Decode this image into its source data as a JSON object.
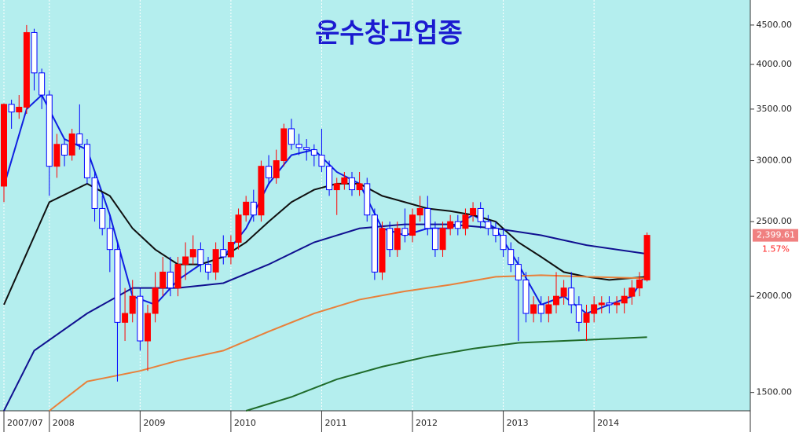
{
  "chart_data": {
    "type": "candlestick",
    "title": "운수창고업종",
    "log_scale": true,
    "ylim": [
      1420,
      4850
    ],
    "yticks": [
      {
        "value": 1500,
        "label": "1500.00"
      },
      {
        "value": 2000,
        "label": "2000.00"
      },
      {
        "value": 2500,
        "label": "2500.00"
      },
      {
        "value": 3000,
        "label": "3000.00"
      },
      {
        "value": 3500,
        "label": "3500.00"
      },
      {
        "value": 4000,
        "label": "4000.00"
      },
      {
        "value": 4500,
        "label": "4500.00"
      }
    ],
    "xticks": [
      {
        "value": "2007-07",
        "label": "2007/07"
      },
      {
        "value": "2008-01",
        "label": "2008"
      },
      {
        "value": "2009-01",
        "label": "2009"
      },
      {
        "value": "2010-01",
        "label": "2010"
      },
      {
        "value": "2011-01",
        "label": "2011"
      },
      {
        "value": "2012-01",
        "label": "2012"
      },
      {
        "value": "2013-01",
        "label": "2013"
      },
      {
        "value": "2014-01",
        "label": "2014"
      }
    ],
    "grid": true,
    "up_color": "#ff0000",
    "down_color": "#0000ff",
    "candles": {
      "x": [
        "2007-07",
        "2007-08",
        "2007-09",
        "2007-10",
        "2007-11",
        "2007-12",
        "2008-01",
        "2008-02",
        "2008-03",
        "2008-04",
        "2008-05",
        "2008-06",
        "2008-07",
        "2008-08",
        "2008-09",
        "2008-10",
        "2008-11",
        "2008-12",
        "2009-01",
        "2009-02",
        "2009-03",
        "2009-04",
        "2009-05",
        "2009-06",
        "2009-07",
        "2009-08",
        "2009-09",
        "2009-10",
        "2009-11",
        "2009-12",
        "2010-01",
        "2010-02",
        "2010-03",
        "2010-04",
        "2010-05",
        "2010-06",
        "2010-07",
        "2010-08",
        "2010-09",
        "2010-10",
        "2010-11",
        "2010-12",
        "2011-01",
        "2011-02",
        "2011-03",
        "2011-04",
        "2011-05",
        "2011-06",
        "2011-07",
        "2011-08",
        "2011-09",
        "2011-10",
        "2011-11",
        "2011-12",
        "2012-01",
        "2012-02",
        "2012-03",
        "2012-04",
        "2012-05",
        "2012-06",
        "2012-07",
        "2012-08",
        "2012-09",
        "2012-10",
        "2012-11",
        "2012-12",
        "2013-01",
        "2013-02",
        "2013-03",
        "2013-04",
        "2013-05",
        "2013-06",
        "2013-07",
        "2013-08",
        "2013-09",
        "2013-10",
        "2013-11",
        "2013-12",
        "2014-01",
        "2014-02",
        "2014-03",
        "2014-04",
        "2014-05",
        "2014-06",
        "2014-07",
        "2014-08"
      ],
      "open": [
        2780,
        3550,
        3470,
        3520,
        4400,
        3900,
        3650,
        2950,
        3150,
        3050,
        3250,
        3150,
        2850,
        2600,
        2450,
        2300,
        1850,
        1900,
        2000,
        1750,
        1900,
        2050,
        2150,
        2050,
        2200,
        2250,
        2300,
        2200,
        2150,
        2300,
        2250,
        2350,
        2550,
        2650,
        2550,
        2950,
        2850,
        3000,
        3300,
        3150,
        3120,
        3100,
        3050,
        2950,
        2750,
        2800,
        2850,
        2750,
        2800,
        2550,
        2150,
        2450,
        2300,
        2450,
        2400,
        2550,
        2600,
        2450,
        2300,
        2450,
        2500,
        2450,
        2550,
        2600,
        2500,
        2450,
        2400,
        2300,
        2200,
        2100,
        1900,
        1950,
        1900,
        1950,
        2000,
        2050,
        1950,
        1850,
        1900,
        1950,
        1960,
        1950,
        1960,
        2000,
        2050,
        2100
      ],
      "high": [
        3560,
        3600,
        3650,
        4500,
        4450,
        3950,
        3700,
        3250,
        3200,
        3300,
        3550,
        3200,
        2900,
        2700,
        2550,
        2350,
        2050,
        2100,
        2050,
        1950,
        2150,
        2250,
        2250,
        2250,
        2350,
        2400,
        2350,
        2250,
        2350,
        2400,
        2400,
        2600,
        2700,
        2750,
        3000,
        3050,
        3100,
        3350,
        3400,
        3250,
        3200,
        3150,
        3300,
        3000,
        2850,
        2900,
        2900,
        2900,
        2850,
        2600,
        2500,
        2500,
        2500,
        2600,
        2600,
        2700,
        2700,
        2500,
        2500,
        2550,
        2550,
        2600,
        2650,
        2650,
        2550,
        2500,
        2450,
        2350,
        2250,
        2150,
        2000,
        2000,
        2000,
        2150,
        2100,
        2150,
        2000,
        1950,
        2000,
        2000,
        2000,
        2000,
        2050,
        2100,
        2150,
        2420
      ],
      "low": [
        2650,
        3300,
        3400,
        3450,
        3700,
        3500,
        2700,
        2850,
        2950,
        3000,
        3100,
        2800,
        2500,
        2400,
        2150,
        1550,
        1750,
        1850,
        1700,
        1600,
        1850,
        2000,
        2000,
        2000,
        2100,
        2200,
        2150,
        2100,
        2100,
        2200,
        2200,
        2300,
        2500,
        2500,
        2500,
        2800,
        2800,
        2950,
        3100,
        3050,
        3000,
        2950,
        2900,
        2700,
        2550,
        2750,
        2700,
        2700,
        2500,
        2100,
        2100,
        2250,
        2250,
        2350,
        2350,
        2500,
        2400,
        2250,
        2250,
        2400,
        2400,
        2400,
        2500,
        2450,
        2400,
        2350,
        2250,
        2150,
        1750,
        1850,
        1850,
        1850,
        1850,
        1900,
        1950,
        1900,
        1800,
        1750,
        1850,
        1900,
        1900,
        1900,
        1900,
        1950,
        2000,
        2090
      ],
      "close": [
        3550,
        3470,
        3520,
        4400,
        3900,
        3650,
        2950,
        3150,
        3050,
        3250,
        3150,
        2850,
        2600,
        2450,
        2300,
        1850,
        1900,
        2000,
        1750,
        1900,
        2050,
        2150,
        2050,
        2200,
        2250,
        2300,
        2200,
        2150,
        2300,
        2250,
        2350,
        2550,
        2650,
        2550,
        2950,
        2850,
        3000,
        3300,
        3150,
        3120,
        3100,
        3050,
        2950,
        2750,
        2800,
        2850,
        2750,
        2800,
        2550,
        2150,
        2450,
        2300,
        2450,
        2400,
        2550,
        2600,
        2450,
        2300,
        2450,
        2500,
        2450,
        2550,
        2600,
        2500,
        2450,
        2400,
        2300,
        2200,
        2100,
        1900,
        1950,
        1900,
        1950,
        2000,
        2050,
        1950,
        1850,
        1900,
        1950,
        1960,
        1950,
        1960,
        2000,
        2050,
        2100,
        2399.61
      ]
    },
    "lines": [
      {
        "color": "#1020e0",
        "x": [
          "2007-07",
          "2007-10",
          "2007-12",
          "2008-03",
          "2008-06",
          "2008-09",
          "2008-12",
          "2009-03",
          "2009-06",
          "2009-09",
          "2009-12",
          "2010-03",
          "2010-06",
          "2010-09",
          "2010-12",
          "2011-03",
          "2011-06",
          "2011-09",
          "2011-12",
          "2012-03",
          "2012-06",
          "2012-09",
          "2012-12",
          "2013-03",
          "2013-06",
          "2013-09",
          "2013-12",
          "2014-03",
          "2014-06",
          "2014-08"
        ],
        "values": [
          2780,
          3500,
          3650,
          3200,
          3100,
          2550,
          2000,
          1950,
          2100,
          2200,
          2250,
          2450,
          2800,
          3050,
          3100,
          2900,
          2800,
          2450,
          2400,
          2450,
          2450,
          2550,
          2450,
          2200,
          1950,
          2000,
          1900,
          1950,
          2000,
          2150
        ]
      },
      {
        "color": "#101010",
        "x": [
          "2007-07",
          "2008-01",
          "2008-06",
          "2008-09",
          "2008-12",
          "2009-03",
          "2009-06",
          "2009-09",
          "2009-12",
          "2010-03",
          "2010-06",
          "2010-09",
          "2010-12",
          "2011-03",
          "2011-06",
          "2011-09",
          "2011-12",
          "2012-03",
          "2012-06",
          "2012-09",
          "2012-12",
          "2013-03",
          "2013-06",
          "2013-09",
          "2013-12",
          "2014-03",
          "2014-08"
        ],
        "values": [
          1950,
          2650,
          2800,
          2700,
          2450,
          2300,
          2200,
          2200,
          2250,
          2350,
          2500,
          2650,
          2750,
          2800,
          2800,
          2700,
          2650,
          2600,
          2580,
          2550,
          2500,
          2350,
          2250,
          2150,
          2120,
          2100,
          2120
        ]
      },
      {
        "color": "#101090",
        "x": [
          "2007-07",
          "2007-11",
          "2008-06",
          "2008-12",
          "2009-06",
          "2009-12",
          "2010-06",
          "2010-12",
          "2011-06",
          "2011-12",
          "2012-06",
          "2012-12",
          "2013-06",
          "2013-12",
          "2014-08"
        ],
        "values": [
          1420,
          1700,
          1900,
          2050,
          2050,
          2080,
          2200,
          2350,
          2450,
          2480,
          2480,
          2450,
          2400,
          2330,
          2270
        ]
      },
      {
        "color": "#e8803a",
        "x": [
          "2008-01",
          "2008-06",
          "2009-01",
          "2009-06",
          "2009-12",
          "2010-06",
          "2010-12",
          "2011-06",
          "2011-12",
          "2012-06",
          "2012-12",
          "2013-06",
          "2013-12",
          "2014-08"
        ],
        "values": [
          1420,
          1550,
          1600,
          1650,
          1700,
          1800,
          1900,
          1980,
          2030,
          2070,
          2120,
          2130,
          2120,
          2110
        ]
      },
      {
        "color": "#1f6b2a",
        "x": [
          "2010-03",
          "2010-09",
          "2011-03",
          "2011-09",
          "2012-03",
          "2012-09",
          "2013-03",
          "2013-09",
          "2014-08"
        ],
        "values": [
          1420,
          1480,
          1560,
          1620,
          1670,
          1710,
          1740,
          1750,
          1770
        ]
      }
    ],
    "last_price": {
      "value": 2399.61,
      "label": "2,399.61"
    },
    "change": {
      "value": 1.57,
      "label": "1.57%"
    }
  }
}
